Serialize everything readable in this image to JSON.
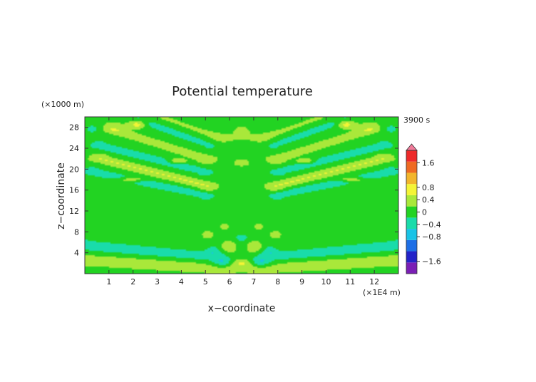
{
  "chart_data": {
    "type": "heatmap",
    "title": "Potential temperature",
    "xlabel": "x−coordinate",
    "ylabel": "z−coordinate",
    "x_unit": "(×1E4 m)",
    "y_unit": "(×1000 m)",
    "time_label": "3900 s",
    "xlim": [
      0,
      13
    ],
    "ylim": [
      0,
      30
    ],
    "x_ticks": [
      1,
      2,
      3,
      4,
      5,
      6,
      7,
      8,
      9,
      10,
      11,
      12
    ],
    "y_ticks": [
      4,
      8,
      12,
      16,
      20,
      24,
      28
    ],
    "colorbar": {
      "ticks": [
        "1.6",
        "0.8",
        "0.4",
        "0",
        "−0.4",
        "−0.8",
        "−1.6"
      ],
      "tick_values": [
        1.6,
        0.8,
        0.4,
        0,
        -0.4,
        -0.8,
        -1.6
      ],
      "range": [
        -2.0,
        2.0
      ],
      "extend": "max",
      "colors": [
        "#7a1fb5",
        "#2323c8",
        "#1e6fe6",
        "#19c3e6",
        "#19dcaa",
        "#22d322",
        "#a9e83a",
        "#f4f436",
        "#f2b52c",
        "#ef6a22",
        "#ee2a2a",
        "#f27a9a"
      ]
    },
    "background_color": "#22d322",
    "features": [
      {
        "kind": "band",
        "x1": 0.0,
        "z1": 2.6,
        "x2": 5.8,
        "z2": 1.0,
        "width": 1.5,
        "value": 0.35
      },
      {
        "kind": "band",
        "x1": 13.0,
        "z1": 2.6,
        "x2": 7.2,
        "z2": 1.0,
        "width": 1.5,
        "value": 0.35
      },
      {
        "kind": "band",
        "x1": 0.0,
        "z1": 5.4,
        "x2": 5.4,
        "z2": 3.2,
        "width": 1.4,
        "value": -0.4
      },
      {
        "kind": "band",
        "x1": 13.0,
        "z1": 5.4,
        "x2": 7.6,
        "z2": 3.2,
        "width": 1.4,
        "value": -0.4
      },
      {
        "kind": "band",
        "x1": 0.0,
        "z1": 8.0,
        "x2": 5.2,
        "z2": 5.2,
        "width": 1.6,
        "value": 0.18
      },
      {
        "kind": "band",
        "x1": 13.0,
        "z1": 8.0,
        "x2": 7.8,
        "z2": 5.2,
        "width": 1.6,
        "value": 0.18
      },
      {
        "kind": "band",
        "x1": 0.0,
        "z1": 16.5,
        "x2": 5.2,
        "z2": 13.0,
        "width": 1.2,
        "value": 0.18
      },
      {
        "kind": "band",
        "x1": 13.0,
        "z1": 16.5,
        "x2": 7.8,
        "z2": 13.0,
        "width": 1.2,
        "value": 0.18
      },
      {
        "kind": "band",
        "x1": 0.3,
        "z1": 19.5,
        "x2": 5.0,
        "z2": 15.0,
        "width": 1.0,
        "value": -0.4
      },
      {
        "kind": "band",
        "x1": 12.7,
        "z1": 19.5,
        "x2": 8.0,
        "z2": 15.0,
        "width": 1.0,
        "value": -0.4
      },
      {
        "kind": "band",
        "x1": 0.6,
        "z1": 22.0,
        "x2": 5.1,
        "z2": 16.8,
        "width": 1.0,
        "value": 0.55
      },
      {
        "kind": "band",
        "x1": 12.4,
        "z1": 22.0,
        "x2": 7.9,
        "z2": 16.8,
        "width": 1.0,
        "value": 0.55
      },
      {
        "kind": "band",
        "x1": 0.6,
        "z1": 24.5,
        "x2": 5.0,
        "z2": 19.5,
        "width": 0.9,
        "value": -0.45
      },
      {
        "kind": "band",
        "x1": 12.4,
        "z1": 24.5,
        "x2": 8.0,
        "z2": 19.5,
        "width": 0.9,
        "value": -0.45
      },
      {
        "kind": "band",
        "x1": 1.2,
        "z1": 27.5,
        "x2": 5.0,
        "z2": 22.0,
        "width": 0.9,
        "value": 0.45
      },
      {
        "kind": "band",
        "x1": 11.8,
        "z1": 27.5,
        "x2": 8.0,
        "z2": 22.0,
        "width": 0.9,
        "value": 0.45
      },
      {
        "kind": "band",
        "x1": 2.2,
        "z1": 29.5,
        "x2": 5.2,
        "z2": 24.5,
        "width": 0.9,
        "value": -0.3
      },
      {
        "kind": "band",
        "x1": 10.8,
        "z1": 29.5,
        "x2": 7.8,
        "z2": 24.5,
        "width": 0.9,
        "value": -0.3
      },
      {
        "kind": "band",
        "x1": 3.3,
        "z1": 29.8,
        "x2": 5.6,
        "z2": 26.0,
        "width": 0.9,
        "value": 0.22
      },
      {
        "kind": "band",
        "x1": 9.7,
        "z1": 29.8,
        "x2": 7.4,
        "z2": 26.0,
        "width": 0.9,
        "value": 0.22
      },
      {
        "kind": "blob",
        "x": 1.0,
        "z": 28.3,
        "rx": 0.9,
        "rz": 1.6,
        "value": 0.2
      },
      {
        "kind": "blob",
        "x": 12.0,
        "z": 28.3,
        "rx": 0.9,
        "rz": 1.6,
        "value": 0.2
      },
      {
        "kind": "blob",
        "x": 0.35,
        "z": 27.8,
        "rx": 0.4,
        "rz": 1.2,
        "value": -0.35
      },
      {
        "kind": "blob",
        "x": 12.65,
        "z": 27.8,
        "rx": 0.4,
        "rz": 1.2,
        "value": -0.35
      },
      {
        "kind": "blob",
        "x": 6.5,
        "z": 21.0,
        "rx": 1.4,
        "rz": 2.5,
        "value": 0.18
      },
      {
        "kind": "blob",
        "x": 6.5,
        "z": 27.0,
        "rx": 1.1,
        "rz": 3.5,
        "value": 0.2
      },
      {
        "kind": "blob",
        "x": 1.9,
        "z": 18.0,
        "rx": 0.6,
        "rz": 0.5,
        "value": 0.7
      },
      {
        "kind": "blob",
        "x": 11.1,
        "z": 18.0,
        "rx": 0.6,
        "rz": 0.5,
        "value": 0.7
      },
      {
        "kind": "blob",
        "x": 2.2,
        "z": 28.6,
        "rx": 0.35,
        "rz": 0.8,
        "value": 0.7
      },
      {
        "kind": "blob",
        "x": 10.8,
        "z": 28.6,
        "rx": 0.35,
        "rz": 0.8,
        "value": 0.7
      },
      {
        "kind": "blob",
        "x": 3.8,
        "z": 21.5,
        "rx": 0.4,
        "rz": 0.5,
        "value": 0.65
      },
      {
        "kind": "blob",
        "x": 9.2,
        "z": 21.5,
        "rx": 0.4,
        "rz": 0.5,
        "value": 0.65
      },
      {
        "kind": "blob",
        "x": 5.7,
        "z": 2.2,
        "rx": 0.35,
        "rz": 0.9,
        "value": -0.5
      },
      {
        "kind": "blob",
        "x": 7.3,
        "z": 2.2,
        "rx": 0.35,
        "rz": 0.9,
        "value": -0.5
      },
      {
        "kind": "blob",
        "x": 6.5,
        "z": 2.0,
        "rx": 0.3,
        "rz": 0.8,
        "value": 0.5
      },
      {
        "kind": "blob",
        "x": 5.3,
        "z": 4.5,
        "rx": 0.3,
        "rz": 1.0,
        "value": -0.5
      },
      {
        "kind": "blob",
        "x": 7.7,
        "z": 4.5,
        "rx": 0.3,
        "rz": 1.0,
        "value": -0.5
      },
      {
        "kind": "blob",
        "x": 6.0,
        "z": 5.0,
        "rx": 0.3,
        "rz": 1.2,
        "value": 0.45
      },
      {
        "kind": "blob",
        "x": 7.0,
        "z": 5.0,
        "rx": 0.3,
        "rz": 1.2,
        "value": 0.45
      },
      {
        "kind": "blob",
        "x": 6.5,
        "z": 6.8,
        "rx": 0.3,
        "rz": 0.8,
        "value": -0.35
      },
      {
        "kind": "blob",
        "x": 5.1,
        "z": 7.5,
        "rx": 0.3,
        "rz": 0.9,
        "value": 0.3
      },
      {
        "kind": "blob",
        "x": 7.9,
        "z": 7.5,
        "rx": 0.3,
        "rz": 0.9,
        "value": 0.3
      },
      {
        "kind": "blob",
        "x": 5.8,
        "z": 9.0,
        "rx": 0.3,
        "rz": 1.0,
        "value": 0.25
      },
      {
        "kind": "blob",
        "x": 7.2,
        "z": 9.0,
        "rx": 0.3,
        "rz": 1.0,
        "value": 0.25
      }
    ]
  }
}
